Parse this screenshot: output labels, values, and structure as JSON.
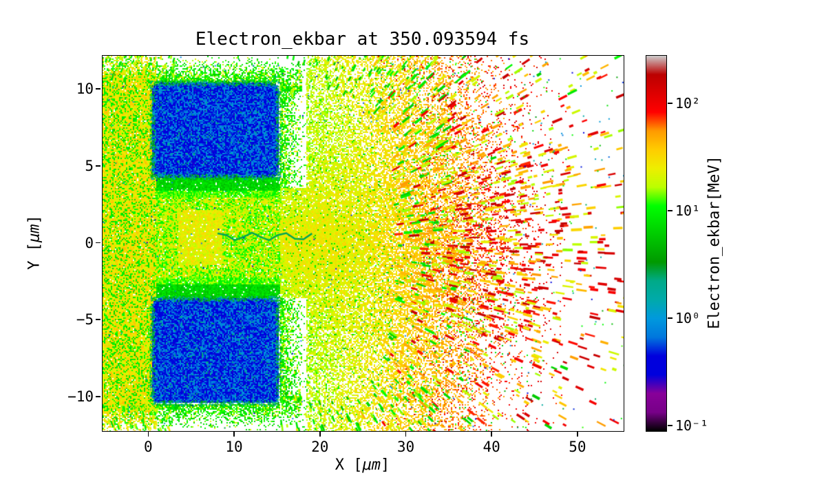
{
  "chart_data": {
    "type": "heatmap",
    "title": "Electron_ekbar at 350.093594 fs",
    "time_fs": 350.093594,
    "xlabel": {
      "prefix": "X [",
      "unit": "μm",
      "suffix": "]"
    },
    "ylabel": {
      "prefix": "Y [",
      "unit": "μm",
      "suffix": "]"
    },
    "xlim": [
      -5.4,
      55.3
    ],
    "ylim": [
      -12.2,
      12.2
    ],
    "xticks": [
      0,
      10,
      20,
      30,
      40,
      50
    ],
    "yticks": [
      -10,
      -5,
      0,
      5,
      10
    ],
    "grid": false,
    "colorbar": {
      "label": "Electron_ekbar[MeV]",
      "scale": "log",
      "vmin": 0.09,
      "vmax": 280,
      "ticks": [
        {
          "value": 0.1,
          "label": "10⁻¹"
        },
        {
          "value": 1,
          "label": "10⁰"
        },
        {
          "value": 10,
          "label": "10¹"
        },
        {
          "value": 100,
          "label": "10²"
        }
      ],
      "colormap": "nipy_spectral",
      "stops": [
        {
          "p": 0.0,
          "c": "#000000"
        },
        {
          "p": 0.05,
          "c": "#770088"
        },
        {
          "p": 0.1,
          "c": "#880099"
        },
        {
          "p": 0.15,
          "c": "#0000dd"
        },
        {
          "p": 0.2,
          "c": "#0000dd"
        },
        {
          "p": 0.25,
          "c": "#0077dd"
        },
        {
          "p": 0.3,
          "c": "#0099dd"
        },
        {
          "p": 0.35,
          "c": "#00aaaa"
        },
        {
          "p": 0.4,
          "c": "#00aa88"
        },
        {
          "p": 0.45,
          "c": "#009900"
        },
        {
          "p": 0.5,
          "c": "#00bb00"
        },
        {
          "p": 0.55,
          "c": "#00dd00"
        },
        {
          "p": 0.6,
          "c": "#00ff00"
        },
        {
          "p": 0.65,
          "c": "#bbff00"
        },
        {
          "p": 0.7,
          "c": "#eeee00"
        },
        {
          "p": 0.75,
          "c": "#ffcc00"
        },
        {
          "p": 0.8,
          "c": "#ff9900"
        },
        {
          "p": 0.85,
          "c": "#ff0000"
        },
        {
          "p": 0.9,
          "c": "#dd0000"
        },
        {
          "p": 0.95,
          "c": "#bb0000"
        },
        {
          "p": 1.0,
          "c": "#cccccc"
        }
      ]
    },
    "regions": {
      "description": "2D map of electron mean kinetic energy (Electron_ekbar) from a laser-plasma simulation at t = 350.093594 fs: two cold blue target blocks (≈0.3–1 MeV) at x≈0–15 μm with a plasma channel between them, a dense 18–43 MeV yellow sheath along the left boundary, a yellow 15–35 MeV jet along y≈0, a broadening 20–60 MeV yellow-orange electron fan for x≈15–33 μm, and filamentary 60–180 MeV red streaks spraying radially outward for x≈30–55 μm over white (no-particle) background.",
      "left_band": {
        "x": [
          -5.4,
          0.9
        ],
        "y": [
          -12.2,
          12.2
        ],
        "value_mev": [
          18,
          43
        ],
        "green_value_mev": [
          7,
          13
        ],
        "coverage": 0.98
      },
      "targets": [
        {
          "x": [
            0.35,
            15.0
          ],
          "y": [
            4.35,
            10.45
          ],
          "value_mev": [
            0.3,
            0.95
          ]
        },
        {
          "x": [
            0.35,
            15.0
          ],
          "y": [
            -10.35,
            -3.55
          ],
          "value_mev": [
            0.3,
            0.95
          ]
        }
      ],
      "halo": {
        "value_mev": [
          6,
          14
        ],
        "yellow_value_mev": [
          16,
          28
        ]
      },
      "channel": {
        "x": [
          0.9,
          15.3
        ],
        "y": [
          -3.55,
          4.35
        ],
        "green_value_mev": [
          9,
          18
        ],
        "yellow_value_mev": [
          16,
          35
        ],
        "edge_value_mev": [
          5,
          10
        ]
      },
      "fan": {
        "origin_x": 13,
        "x": [
          15,
          33
        ],
        "base_value_mev": 20,
        "max_value_mev": 63,
        "half_angle_rad": 1.25,
        "red_speck_value_mev": [
          90,
          180
        ]
      },
      "spray": {
        "x": [
          28,
          55.3
        ],
        "count": 2600,
        "red_value_mev": [
          75,
          180
        ],
        "orange_value_mev": [
          32,
          57
        ],
        "yellow_value_mev": [
          15,
          29
        ],
        "green_value_mev": [
          6,
          12
        ],
        "cyan_value_mev": [
          1.0,
          3.0
        ]
      },
      "specks": {
        "count": 1100,
        "value_mev": [
          0.35,
          14
        ]
      }
    }
  }
}
